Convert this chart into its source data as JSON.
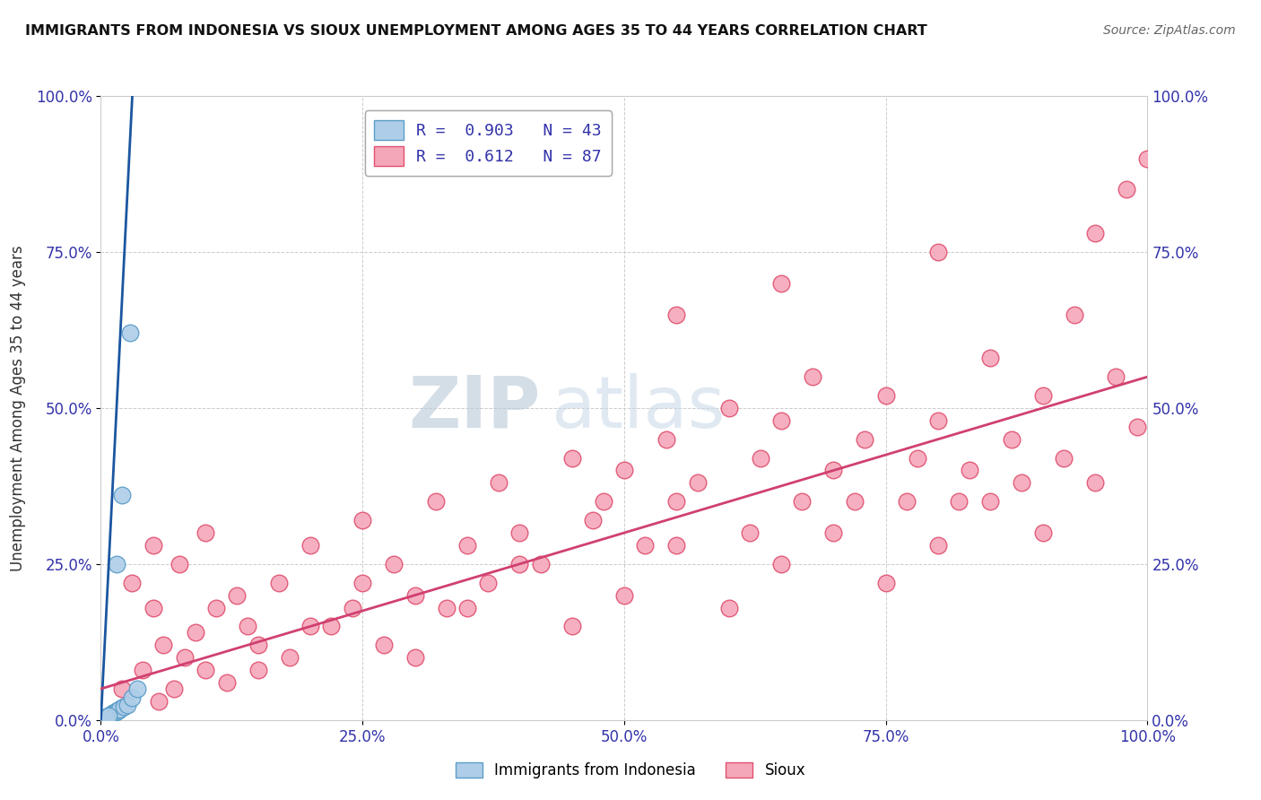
{
  "title": "IMMIGRANTS FROM INDONESIA VS SIOUX UNEMPLOYMENT AMONG AGES 35 TO 44 YEARS CORRELATION CHART",
  "source": "Source: ZipAtlas.com",
  "ylabel": "Unemployment Among Ages 35 to 44 years",
  "x_tick_labels": [
    "0.0%",
    "25.0%",
    "50.0%",
    "75.0%",
    "100.0%"
  ],
  "y_tick_labels": [
    "0.0%",
    "25.0%",
    "50.0%",
    "75.0%",
    "100.0%"
  ],
  "x_tick_positions": [
    0,
    25,
    50,
    75,
    100
  ],
  "y_tick_positions": [
    0,
    25,
    50,
    75,
    100
  ],
  "right_y_labels": [
    "100.0%",
    "75.0%",
    "50.0%",
    "25.0%",
    "0.0%"
  ],
  "right_y_positions": [
    100,
    75,
    50,
    25,
    0
  ],
  "legend_entries": [
    {
      "label": "R =  0.903   N = 43",
      "color": "#aecde8"
    },
    {
      "label": "R =  0.612   N = 87",
      "color": "#f4a7b9"
    }
  ],
  "series_indonesia": {
    "color": "#aecde8",
    "edge_color": "#5b9dc8",
    "points": [
      [
        0.1,
        0.2
      ],
      [
        0.15,
        0.1
      ],
      [
        0.2,
        0.3
      ],
      [
        0.25,
        0.15
      ],
      [
        0.3,
        0.2
      ],
      [
        0.35,
        0.25
      ],
      [
        0.4,
        0.3
      ],
      [
        0.45,
        0.35
      ],
      [
        0.5,
        0.4
      ],
      [
        0.6,
        0.5
      ],
      [
        0.7,
        0.6
      ],
      [
        0.8,
        0.7
      ],
      [
        0.9,
        0.8
      ],
      [
        1.0,
        0.9
      ],
      [
        1.1,
        1.0
      ],
      [
        1.2,
        1.1
      ],
      [
        1.3,
        1.2
      ],
      [
        1.5,
        1.4
      ],
      [
        1.7,
        1.6
      ],
      [
        2.0,
        2.0
      ],
      [
        0.2,
        0.1
      ],
      [
        0.3,
        0.2
      ],
      [
        0.4,
        0.3
      ],
      [
        0.5,
        0.4
      ],
      [
        0.6,
        0.5
      ],
      [
        0.7,
        0.6
      ],
      [
        0.8,
        0.7
      ],
      [
        0.9,
        0.8
      ],
      [
        1.0,
        0.9
      ],
      [
        1.2,
        1.1
      ],
      [
        1.4,
        1.3
      ],
      [
        1.6,
        1.5
      ],
      [
        1.8,
        1.7
      ],
      [
        2.2,
        2.1
      ],
      [
        2.5,
        2.4
      ],
      [
        3.0,
        3.5
      ],
      [
        3.5,
        5.0
      ],
      [
        1.5,
        25.0
      ],
      [
        2.0,
        36.0
      ],
      [
        2.8,
        62.0
      ],
      [
        0.3,
        0.25
      ],
      [
        0.5,
        0.45
      ],
      [
        0.7,
        0.65
      ]
    ]
  },
  "series_sioux": {
    "color": "#f4a7b9",
    "edge_color": "#e05070",
    "points": [
      [
        2.0,
        5.0
      ],
      [
        4.0,
        8.0
      ],
      [
        5.5,
        3.0
      ],
      [
        6.0,
        12.0
      ],
      [
        7.0,
        5.0
      ],
      [
        8.0,
        10.0
      ],
      [
        9.0,
        14.0
      ],
      [
        10.0,
        8.0
      ],
      [
        11.0,
        18.0
      ],
      [
        12.0,
        6.0
      ],
      [
        13.0,
        20.0
      ],
      [
        14.0,
        15.0
      ],
      [
        15.0,
        12.0
      ],
      [
        17.0,
        22.0
      ],
      [
        18.0,
        10.0
      ],
      [
        20.0,
        28.0
      ],
      [
        22.0,
        15.0
      ],
      [
        24.0,
        18.0
      ],
      [
        25.0,
        32.0
      ],
      [
        27.0,
        12.0
      ],
      [
        28.0,
        25.0
      ],
      [
        30.0,
        20.0
      ],
      [
        32.0,
        35.0
      ],
      [
        33.0,
        18.0
      ],
      [
        35.0,
        28.0
      ],
      [
        37.0,
        22.0
      ],
      [
        38.0,
        38.0
      ],
      [
        40.0,
        30.0
      ],
      [
        42.0,
        25.0
      ],
      [
        45.0,
        42.0
      ],
      [
        47.0,
        32.0
      ],
      [
        48.0,
        35.0
      ],
      [
        50.0,
        40.0
      ],
      [
        52.0,
        28.0
      ],
      [
        54.0,
        45.0
      ],
      [
        55.0,
        35.0
      ],
      [
        57.0,
        38.0
      ],
      [
        60.0,
        50.0
      ],
      [
        62.0,
        30.0
      ],
      [
        63.0,
        42.0
      ],
      [
        65.0,
        48.0
      ],
      [
        67.0,
        35.0
      ],
      [
        68.0,
        55.0
      ],
      [
        70.0,
        40.0
      ],
      [
        72.0,
        35.0
      ],
      [
        73.0,
        45.0
      ],
      [
        75.0,
        52.0
      ],
      [
        77.0,
        35.0
      ],
      [
        78.0,
        42.0
      ],
      [
        80.0,
        48.0
      ],
      [
        82.0,
        35.0
      ],
      [
        83.0,
        40.0
      ],
      [
        85.0,
        58.0
      ],
      [
        87.0,
        45.0
      ],
      [
        88.0,
        38.0
      ],
      [
        90.0,
        52.0
      ],
      [
        92.0,
        42.0
      ],
      [
        93.0,
        65.0
      ],
      [
        95.0,
        78.0
      ],
      [
        97.0,
        55.0
      ],
      [
        98.0,
        85.0
      ],
      [
        99.0,
        47.0
      ],
      [
        100.0,
        90.0
      ],
      [
        3.0,
        22.0
      ],
      [
        5.0,
        18.0
      ],
      [
        7.5,
        25.0
      ],
      [
        10.0,
        30.0
      ],
      [
        15.0,
        8.0
      ],
      [
        20.0,
        15.0
      ],
      [
        25.0,
        22.0
      ],
      [
        30.0,
        10.0
      ],
      [
        35.0,
        18.0
      ],
      [
        40.0,
        25.0
      ],
      [
        45.0,
        15.0
      ],
      [
        50.0,
        20.0
      ],
      [
        55.0,
        28.0
      ],
      [
        60.0,
        18.0
      ],
      [
        65.0,
        25.0
      ],
      [
        70.0,
        30.0
      ],
      [
        75.0,
        22.0
      ],
      [
        80.0,
        28.0
      ],
      [
        85.0,
        35.0
      ],
      [
        90.0,
        30.0
      ],
      [
        95.0,
        38.0
      ],
      [
        5.0,
        28.0
      ],
      [
        55.0,
        65.0
      ],
      [
        65.0,
        70.0
      ],
      [
        80.0,
        75.0
      ]
    ]
  },
  "regression_indonesia": {
    "color": "#1a56a0",
    "x_start": 0.0,
    "x_end": 3.0,
    "y_start": 0.0,
    "y_end": 100.0,
    "linewidth": 2.0
  },
  "regression_sioux": {
    "color": "#d04070",
    "x_start": 0.0,
    "x_end": 100.0,
    "y_start": 5.0,
    "y_end": 55.0,
    "linewidth": 2.0
  },
  "watermark_zip": "ZIP",
  "watermark_atlas": "atlas",
  "background_color": "#ffffff",
  "grid_color": "#cccccc",
  "xlim": [
    0,
    100
  ],
  "ylim": [
    0,
    100
  ]
}
